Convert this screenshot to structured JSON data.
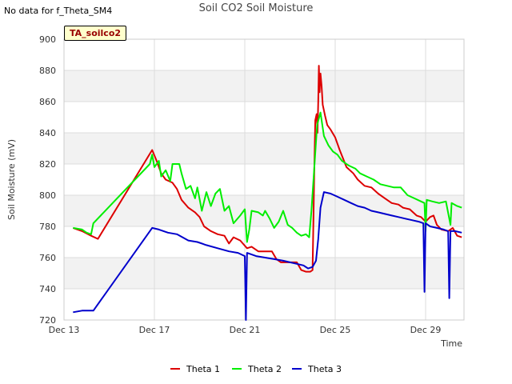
{
  "header": {
    "nodata": "No data for f_Theta_SM4",
    "badge": "TA_soilco2"
  },
  "colors": {
    "theta1": "#dd0000",
    "theta2": "#00ee00",
    "theta3": "#0000cc",
    "band": "#f2f2f2",
    "grid": "#dcdcdc"
  },
  "chart_data": {
    "type": "line",
    "title": "Soil CO2 Soil Moisture",
    "xlabel": "Time",
    "ylabel": "Soil Moisture (mV)",
    "xlim": [
      13,
      30.7
    ],
    "ylim": [
      720,
      900
    ],
    "yticks": [
      720,
      740,
      760,
      780,
      800,
      820,
      840,
      860,
      880,
      900
    ],
    "xticks": [
      {
        "value": 13,
        "label": "Dec 13"
      },
      {
        "value": 17,
        "label": "Dec 17"
      },
      {
        "value": 21,
        "label": "Dec 21"
      },
      {
        "value": 25,
        "label": "Dec 25"
      },
      {
        "value": 29,
        "label": "Dec 29"
      }
    ],
    "legend_position": "bottom",
    "series": [
      {
        "name": "Theta 1",
        "color": "#dd0000",
        "points": [
          [
            13.4,
            779
          ],
          [
            13.8,
            777
          ],
          [
            14.2,
            774
          ],
          [
            14.5,
            772
          ],
          [
            16.9,
            829
          ],
          [
            17.1,
            822
          ],
          [
            17.3,
            814
          ],
          [
            17.5,
            810
          ],
          [
            17.8,
            808
          ],
          [
            18.0,
            804
          ],
          [
            18.2,
            797
          ],
          [
            18.5,
            792
          ],
          [
            18.8,
            789
          ],
          [
            19.0,
            786
          ],
          [
            19.2,
            780
          ],
          [
            19.5,
            777
          ],
          [
            19.8,
            775
          ],
          [
            20.1,
            774
          ],
          [
            20.3,
            769
          ],
          [
            20.5,
            773
          ],
          [
            20.8,
            771
          ],
          [
            21.1,
            766
          ],
          [
            21.3,
            767
          ],
          [
            21.6,
            764
          ],
          [
            21.9,
            764
          ],
          [
            22.2,
            764
          ],
          [
            22.4,
            759
          ],
          [
            22.6,
            757
          ],
          [
            23.0,
            757
          ],
          [
            23.3,
            757
          ],
          [
            23.5,
            752
          ],
          [
            23.7,
            751
          ],
          [
            23.9,
            751
          ],
          [
            24.0,
            752
          ],
          [
            24.08,
            820
          ],
          [
            24.12,
            848
          ],
          [
            24.18,
            852
          ],
          [
            24.22,
            840
          ],
          [
            24.25,
            860
          ],
          [
            24.28,
            883
          ],
          [
            24.31,
            866
          ],
          [
            24.35,
            878
          ],
          [
            24.4,
            870
          ],
          [
            24.45,
            858
          ],
          [
            24.55,
            851
          ],
          [
            24.65,
            845
          ],
          [
            24.8,
            842
          ],
          [
            25.0,
            837
          ],
          [
            25.2,
            829
          ],
          [
            25.5,
            818
          ],
          [
            25.8,
            814
          ],
          [
            26.0,
            810
          ],
          [
            26.3,
            806
          ],
          [
            26.6,
            805
          ],
          [
            26.9,
            801
          ],
          [
            27.2,
            798
          ],
          [
            27.5,
            795
          ],
          [
            27.8,
            794
          ],
          [
            28.0,
            792
          ],
          [
            28.3,
            791
          ],
          [
            28.6,
            787
          ],
          [
            28.8,
            786
          ],
          [
            29.0,
            783
          ],
          [
            29.2,
            786
          ],
          [
            29.35,
            787
          ],
          [
            29.5,
            781
          ],
          [
            29.7,
            778
          ],
          [
            30.0,
            777
          ],
          [
            30.2,
            779
          ],
          [
            30.4,
            774
          ],
          [
            30.6,
            773
          ]
        ]
      },
      {
        "name": "Theta 2",
        "color": "#00ee00",
        "points": [
          [
            13.4,
            779
          ],
          [
            13.8,
            778
          ],
          [
            14.0,
            776
          ],
          [
            14.2,
            775
          ],
          [
            14.3,
            782
          ],
          [
            16.8,
            820
          ],
          [
            16.9,
            826
          ],
          [
            17.0,
            818
          ],
          [
            17.2,
            822
          ],
          [
            17.3,
            812
          ],
          [
            17.5,
            816
          ],
          [
            17.7,
            809
          ],
          [
            17.8,
            820
          ],
          [
            18.1,
            820
          ],
          [
            18.2,
            814
          ],
          [
            18.4,
            804
          ],
          [
            18.6,
            806
          ],
          [
            18.8,
            798
          ],
          [
            18.9,
            805
          ],
          [
            19.1,
            790
          ],
          [
            19.3,
            802
          ],
          [
            19.5,
            793
          ],
          [
            19.7,
            801
          ],
          [
            19.9,
            804
          ],
          [
            20.1,
            790
          ],
          [
            20.3,
            793
          ],
          [
            20.5,
            782
          ],
          [
            20.8,
            787
          ],
          [
            21.0,
            791
          ],
          [
            21.1,
            770
          ],
          [
            21.2,
            778
          ],
          [
            21.3,
            790
          ],
          [
            21.6,
            789
          ],
          [
            21.8,
            787
          ],
          [
            21.9,
            790
          ],
          [
            22.1,
            785
          ],
          [
            22.3,
            779
          ],
          [
            22.5,
            783
          ],
          [
            22.7,
            790
          ],
          [
            22.9,
            781
          ],
          [
            23.1,
            779
          ],
          [
            23.3,
            776
          ],
          [
            23.5,
            774
          ],
          [
            23.7,
            775
          ],
          [
            23.85,
            773
          ],
          [
            23.95,
            790
          ],
          [
            24.2,
            845
          ],
          [
            24.35,
            853
          ],
          [
            24.5,
            838
          ],
          [
            24.7,
            832
          ],
          [
            24.9,
            828
          ],
          [
            25.1,
            826
          ],
          [
            25.3,
            822
          ],
          [
            25.6,
            819
          ],
          [
            25.9,
            817
          ],
          [
            26.1,
            814
          ],
          [
            26.4,
            812
          ],
          [
            26.7,
            810
          ],
          [
            27.0,
            807
          ],
          [
            27.3,
            806
          ],
          [
            27.6,
            805
          ],
          [
            27.9,
            805
          ],
          [
            28.2,
            800
          ],
          [
            28.5,
            798
          ],
          [
            28.8,
            796
          ],
          [
            28.95,
            795
          ],
          [
            29.0,
            777
          ],
          [
            29.05,
            797
          ],
          [
            29.3,
            796
          ],
          [
            29.6,
            795
          ],
          [
            29.9,
            796
          ],
          [
            30.1,
            781
          ],
          [
            30.15,
            795
          ],
          [
            30.4,
            793
          ],
          [
            30.6,
            792
          ]
        ]
      },
      {
        "name": "Theta 3",
        "color": "#0000cc",
        "points": [
          [
            13.4,
            725
          ],
          [
            13.8,
            726
          ],
          [
            14.3,
            726
          ],
          [
            16.9,
            779
          ],
          [
            17.2,
            778
          ],
          [
            17.6,
            776
          ],
          [
            18.0,
            775
          ],
          [
            18.5,
            771
          ],
          [
            18.9,
            770
          ],
          [
            19.3,
            768
          ],
          [
            19.8,
            766
          ],
          [
            20.3,
            764
          ],
          [
            20.7,
            763
          ],
          [
            21.0,
            761
          ],
          [
            21.05,
            720
          ],
          [
            21.1,
            763
          ],
          [
            21.5,
            761
          ],
          [
            21.9,
            760
          ],
          [
            22.3,
            759
          ],
          [
            22.7,
            758
          ],
          [
            23.0,
            757
          ],
          [
            23.3,
            756
          ],
          [
            23.6,
            755
          ],
          [
            23.8,
            753
          ],
          [
            24.0,
            754
          ],
          [
            24.15,
            758
          ],
          [
            24.25,
            772
          ],
          [
            24.35,
            792
          ],
          [
            24.5,
            802
          ],
          [
            24.8,
            801
          ],
          [
            25.1,
            799
          ],
          [
            25.4,
            797
          ],
          [
            25.7,
            795
          ],
          [
            26.0,
            793
          ],
          [
            26.3,
            792
          ],
          [
            26.6,
            790
          ],
          [
            26.9,
            789
          ],
          [
            27.2,
            788
          ],
          [
            27.5,
            787
          ],
          [
            27.8,
            786
          ],
          [
            28.1,
            785
          ],
          [
            28.4,
            784
          ],
          [
            28.7,
            783
          ],
          [
            28.9,
            782
          ],
          [
            28.95,
            738
          ],
          [
            29.0,
            782
          ],
          [
            29.2,
            780
          ],
          [
            29.5,
            779
          ],
          [
            29.8,
            778
          ],
          [
            30.0,
            777
          ],
          [
            30.05,
            734
          ],
          [
            30.1,
            777
          ],
          [
            30.3,
            777
          ],
          [
            30.6,
            776
          ]
        ]
      }
    ]
  }
}
